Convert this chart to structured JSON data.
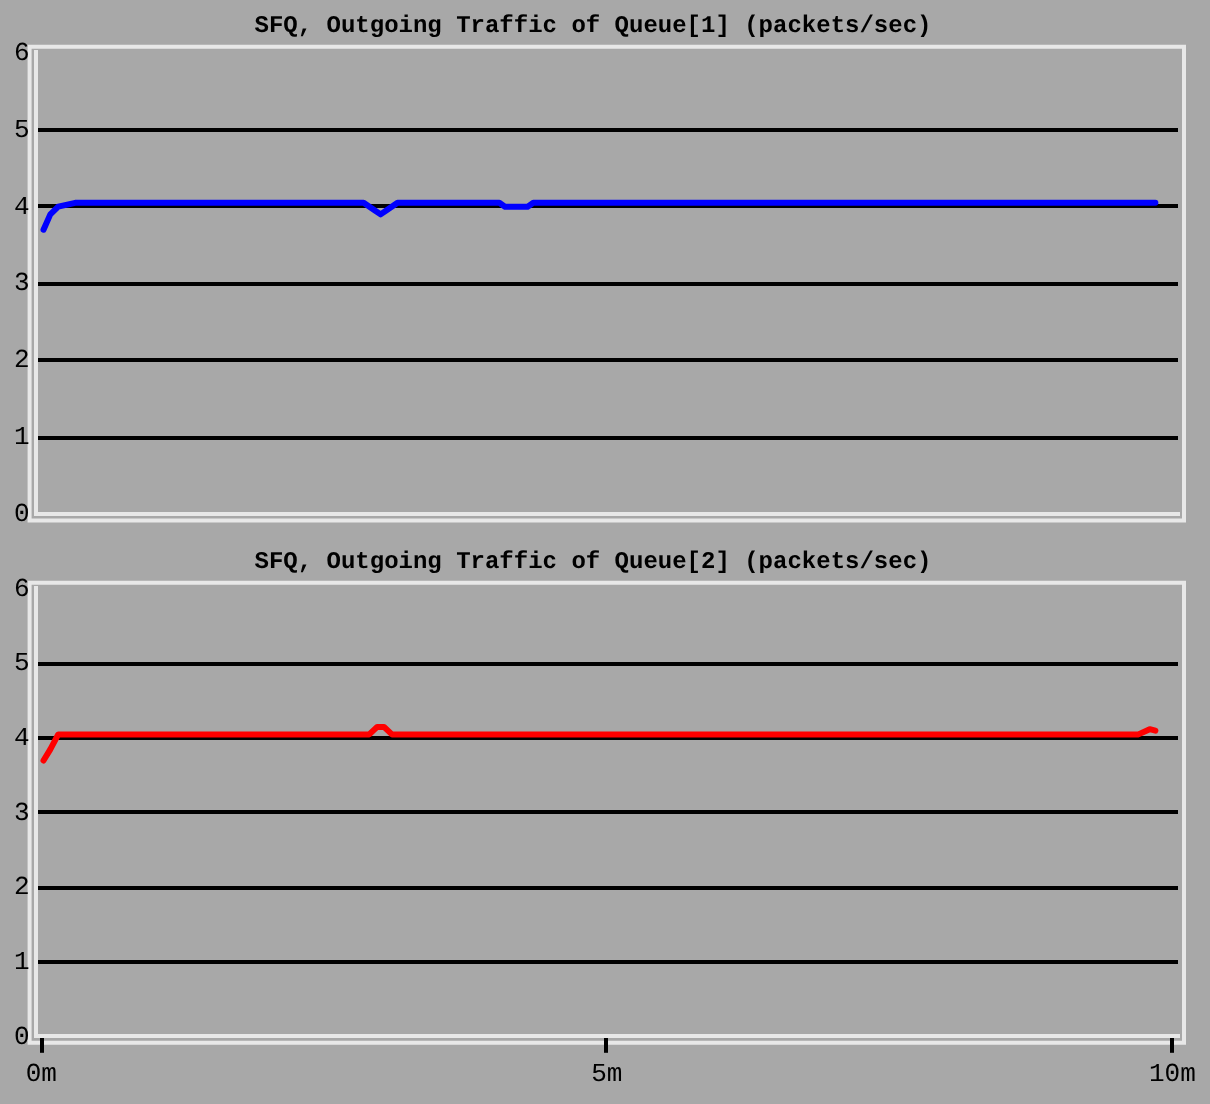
{
  "chart_data": [
    {
      "type": "line",
      "title": "SFQ, Outgoing Traffic of Queue[1] (packets/sec)",
      "xlim": [
        -0.05,
        10.05
      ],
      "ylim": [
        0,
        6
      ],
      "yticks": [
        0,
        1,
        2,
        3,
        4,
        5,
        6
      ],
      "grid": "y",
      "tick_labels": "y",
      "legend": false,
      "marker": "none",
      "line_style": "solid",
      "series": [
        {
          "color": "#0000ff",
          "x": [
            0.02,
            0.08,
            0.15,
            0.3,
            1.5,
            2.85,
            2.95,
            3.0,
            3.05,
            3.15,
            4.05,
            4.1,
            4.3,
            4.35,
            6,
            8,
            9.85
          ],
          "values": [
            3.7,
            3.9,
            4.0,
            4.05,
            4.05,
            4.05,
            3.95,
            3.9,
            3.95,
            4.05,
            4.05,
            4.0,
            4.0,
            4.05,
            4.05,
            4.05,
            4.05
          ]
        }
      ]
    },
    {
      "type": "line",
      "title": "SFQ, Outgoing Traffic of Queue[2] (packets/sec)",
      "xlim": [
        -0.05,
        10.05
      ],
      "xticks": [
        {
          "value": 0,
          "label": "0m"
        },
        {
          "value": 5,
          "label": "5m"
        },
        {
          "value": 10,
          "label": "10m"
        }
      ],
      "ylim": [
        0,
        6
      ],
      "yticks": [
        0,
        1,
        2,
        3,
        4,
        5,
        6
      ],
      "grid": "y",
      "legend": false,
      "marker": "none",
      "line_style": "solid",
      "series": [
        {
          "color": "#ff0000",
          "x": [
            0.02,
            0.08,
            0.15,
            1.5,
            2.9,
            2.97,
            3.03,
            3.1,
            6,
            9.7,
            9.8,
            9.85
          ],
          "values": [
            3.7,
            3.85,
            4.05,
            4.05,
            4.05,
            4.15,
            4.15,
            4.05,
            4.05,
            4.05,
            4.12,
            4.1
          ]
        }
      ]
    }
  ]
}
